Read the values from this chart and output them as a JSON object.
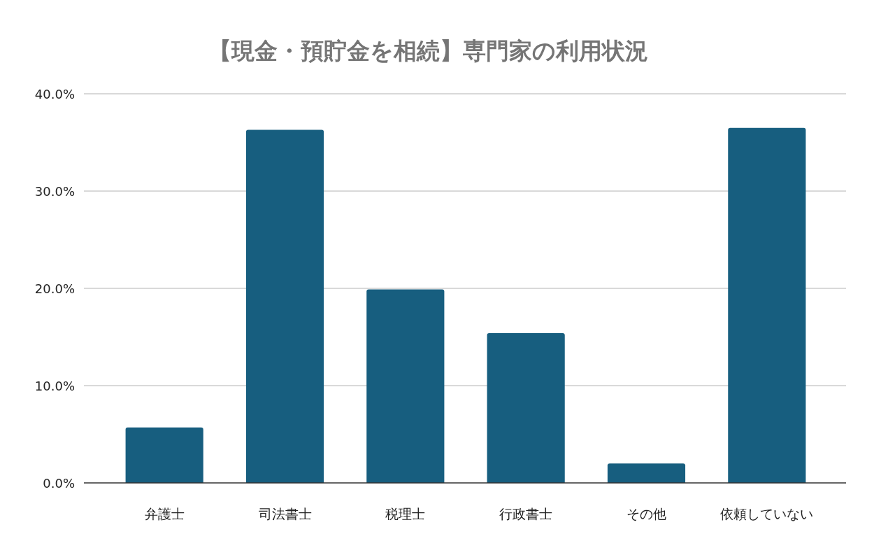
{
  "chart_data": {
    "type": "bar",
    "title": "【現金・預貯金を相続】専門家の利用状況",
    "categories": [
      "弁護士",
      "司法書士",
      "税理士",
      "行政書士",
      "その他",
      "依頼していない"
    ],
    "values": [
      5.7,
      36.3,
      19.9,
      15.4,
      2.0,
      36.5
    ],
    "color": "#175e7f",
    "ylim": [
      0,
      40
    ],
    "yticks": [
      {
        "value": 0,
        "label": "0.0%"
      },
      {
        "value": 10,
        "label": "10.0%"
      },
      {
        "value": 20,
        "label": "20.0%"
      },
      {
        "value": 30,
        "label": "30.0%"
      },
      {
        "value": 40,
        "label": "40.0%"
      }
    ],
    "grid": "y"
  }
}
